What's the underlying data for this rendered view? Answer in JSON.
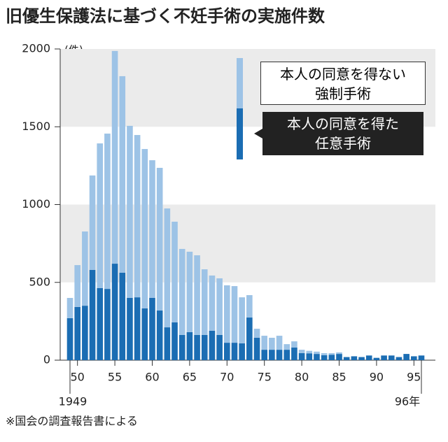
{
  "chart_data": {
    "type": "stacked_bar",
    "title": "旧優生保護法に基づく不妊手術の実施件数",
    "y_unit": "(件)",
    "note": "※国会の調査報告書による",
    "categories": [
      "1949",
      "50",
      null,
      null,
      null,
      null,
      "55",
      null,
      null,
      null,
      null,
      "60",
      null,
      null,
      null,
      null,
      "65",
      null,
      null,
      null,
      null,
      "70",
      null,
      null,
      null,
      null,
      "75",
      null,
      null,
      null,
      null,
      "80",
      null,
      null,
      null,
      null,
      "85",
      null,
      null,
      null,
      null,
      "90",
      null,
      null,
      null,
      null,
      "95",
      "96年"
    ],
    "series": [
      {
        "name": "本人の同意を得た\n任意手術",
        "color": "#1b6db3",
        "values": [
          270,
          342,
          350,
          580,
          463,
          458,
          620,
          562,
          400,
          404,
          333,
          400,
          319,
          211,
          243,
          162,
          180,
          162,
          162,
          189,
          162,
          112,
          112,
          108,
          274,
          144,
          67,
          67,
          67,
          67,
          81,
          45,
          44,
          40,
          32,
          35,
          40,
          20,
          25,
          20,
          30,
          15,
          30,
          30,
          20,
          40,
          25,
          30
        ]
      },
      {
        "name": "本人の同意を得ない\n強制手術",
        "color": "#9dc3e6",
        "values": [
          130,
          269,
          477,
          607,
          930,
          998,
          1367,
          1263,
          1106,
          1043,
          1024,
          885,
          917,
          764,
          647,
          553,
          517,
          512,
          422,
          355,
          364,
          369,
          364,
          296,
          144,
          58,
          90,
          77,
          90,
          36,
          40,
          22,
          16,
          15,
          13,
          10,
          10,
          0,
          0,
          0,
          0,
          0,
          0,
          0,
          0,
          0,
          0,
          0
        ]
      }
    ],
    "ylim": [
      0,
      2000
    ],
    "yticks": [
      0,
      500,
      1000,
      1500,
      2000
    ],
    "bands": true
  }
}
